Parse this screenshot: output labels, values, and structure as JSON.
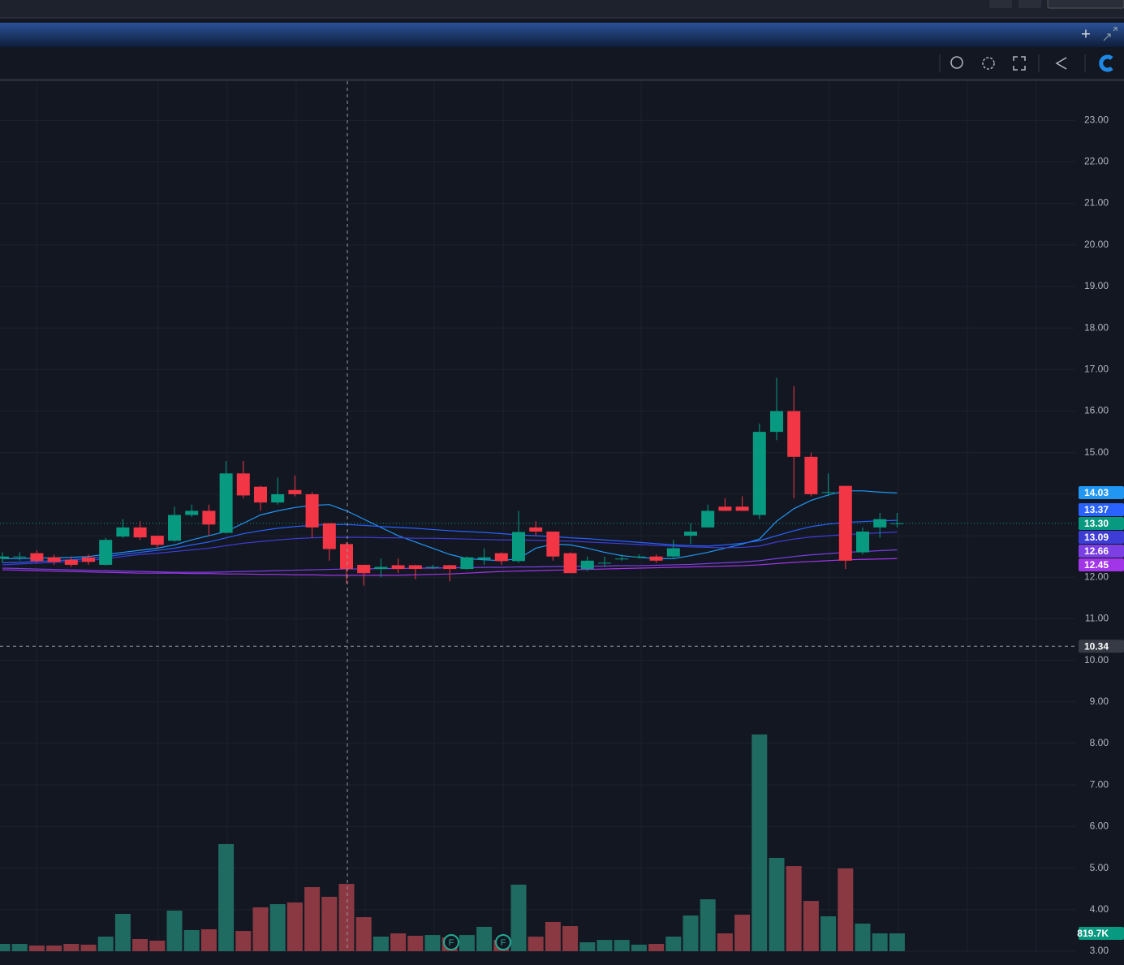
{
  "chart_data": {
    "type": "candlestick",
    "ylim": [
      3,
      24
    ],
    "yticks": [
      {
        "value": 3,
        "label": "3.00"
      },
      {
        "value": 4,
        "label": "4.00"
      },
      {
        "value": 5,
        "label": "5.00"
      },
      {
        "value": 6,
        "label": "6.00"
      },
      {
        "value": 7,
        "label": "7.00"
      },
      {
        "value": 8,
        "label": "8.00"
      },
      {
        "value": 9,
        "label": "9.00"
      },
      {
        "value": 10,
        "label": "10.00"
      },
      {
        "value": 11,
        "label": "11.00"
      },
      {
        "value": 12,
        "label": "12.00"
      },
      {
        "value": 13,
        "label": "13.00"
      },
      {
        "value": 14,
        "label": "14.00"
      },
      {
        "value": 15,
        "label": "15.00"
      },
      {
        "value": 16,
        "label": "16.00"
      },
      {
        "value": 17,
        "label": "17.00"
      },
      {
        "value": 18,
        "label": "18.00"
      },
      {
        "value": 19,
        "label": "19.00"
      },
      {
        "value": 20,
        "label": "20.00"
      },
      {
        "value": 21,
        "label": "21.00"
      },
      {
        "value": 22,
        "label": "22.00"
      },
      {
        "value": 23,
        "label": "23.00"
      }
    ],
    "grid": true,
    "up_color": "#089981",
    "down_color": "#f23645",
    "open": [
      12.45,
      12.5,
      12.58,
      12.48,
      12.42,
      12.48,
      12.3,
      12.98,
      13.2,
      13.0,
      12.88,
      13.5,
      13.6,
      13.07,
      14.5,
      14.18,
      13.8,
      14.1,
      14.0,
      13.3,
      12.8,
      12.3,
      12.2,
      12.29,
      12.29,
      12.25,
      12.29,
      12.2,
      12.43,
      12.58,
      12.39,
      13.2,
      13.1,
      12.58,
      12.2,
      12.35,
      12.45,
      12.5,
      12.5,
      12.5,
      13.0,
      13.2,
      13.7,
      13.7,
      13.5,
      15.5,
      16.0,
      14.9,
      14.05,
      14.2,
      12.6,
      13.2,
      13.3
    ],
    "high": [
      12.6,
      12.6,
      12.65,
      12.55,
      12.5,
      12.55,
      12.95,
      13.4,
      13.35,
      13.0,
      13.7,
      13.75,
      13.75,
      14.8,
      14.8,
      14.2,
      14.4,
      14.45,
      14.05,
      13.3,
      12.85,
      12.3,
      12.45,
      12.45,
      12.3,
      12.3,
      12.3,
      12.5,
      12.7,
      12.6,
      13.6,
      13.35,
      13.1,
      12.6,
      12.5,
      12.5,
      12.55,
      12.55,
      12.55,
      12.9,
      13.3,
      13.75,
      13.9,
      13.95,
      15.7,
      16.8,
      16.6,
      15.0,
      14.5,
      14.2,
      13.2,
      13.55,
      13.55
    ],
    "low": [
      12.35,
      12.4,
      12.35,
      12.3,
      12.25,
      12.3,
      12.28,
      12.95,
      12.9,
      12.7,
      12.85,
      13.45,
      13.0,
      13.05,
      13.9,
      13.6,
      13.75,
      13.95,
      12.95,
      12.4,
      11.85,
      11.8,
      12.0,
      12.1,
      11.95,
      12.2,
      11.9,
      12.18,
      12.3,
      12.3,
      12.35,
      13.0,
      12.4,
      12.1,
      12.15,
      12.25,
      12.4,
      12.45,
      12.35,
      12.45,
      12.8,
      13.2,
      13.6,
      13.6,
      13.4,
      15.3,
      13.9,
      13.95,
      13.95,
      12.2,
      12.55,
      12.95,
      13.2
    ],
    "close": [
      12.5,
      12.5,
      12.39,
      12.37,
      12.3,
      12.37,
      12.9,
      13.2,
      12.96,
      12.78,
      13.5,
      13.6,
      13.27,
      14.5,
      13.97,
      13.8,
      14.0,
      14.0,
      13.2,
      12.68,
      12.2,
      12.1,
      12.25,
      12.2,
      12.2,
      12.25,
      12.2,
      12.48,
      12.48,
      12.39,
      13.09,
      13.1,
      12.5,
      12.1,
      12.4,
      12.35,
      12.45,
      12.5,
      12.4,
      12.7,
      13.1,
      13.6,
      13.6,
      13.6,
      15.5,
      16.0,
      14.9,
      14.0,
      14.05,
      12.4,
      13.1,
      13.4,
      13.3
    ],
    "volume": {
      "values": [
        335,
        335,
        260,
        260,
        335,
        300,
        670,
        1715,
        560,
        485,
        1865,
        970,
        1010,
        4925,
        930,
        2015,
        2165,
        2240,
        2945,
        2500,
        3095,
        1565,
        670,
        820,
        710,
        745,
        635,
        745,
        1120,
        520,
        3060,
        670,
        1345,
        1155,
        410,
        520,
        520,
        300,
        335,
        670,
        1640,
        2385,
        820,
        1680,
        9960,
        4290,
        3915,
        2310,
        1605,
        3805,
        1270,
        820,
        819.7
      ],
      "value_label": "819.7K",
      "up_color": "#1f6b62",
      "down_color": "#8a3942",
      "label_color": "#089981"
    },
    "series": [
      {
        "color": "#2196f3",
        "value_label": "14.03",
        "values": [
          12.45,
          12.45,
          12.46,
          12.47,
          12.48,
          12.5,
          12.55,
          12.6,
          12.65,
          12.7,
          12.78,
          12.9,
          13.0,
          13.1,
          13.3,
          13.5,
          13.6,
          13.68,
          13.73,
          13.75,
          13.6,
          13.4,
          13.2,
          13.0,
          12.85,
          12.7,
          12.55,
          12.45,
          12.42,
          12.4,
          12.45,
          12.7,
          12.8,
          12.78,
          12.7,
          12.6,
          12.52,
          12.48,
          12.45,
          12.45,
          12.52,
          12.6,
          12.7,
          12.8,
          12.92,
          13.35,
          13.65,
          13.85,
          13.98,
          14.08,
          14.08,
          14.05,
          14.03
        ]
      },
      {
        "color": "#2962ff",
        "value_label": "13.37",
        "values": [
          12.35,
          12.36,
          12.38,
          12.4,
          12.42,
          12.45,
          12.5,
          12.55,
          12.6,
          12.65,
          12.7,
          12.78,
          12.85,
          12.95,
          13.05,
          13.12,
          13.18,
          13.22,
          13.25,
          13.27,
          13.27,
          13.25,
          13.22,
          13.2,
          13.18,
          13.15,
          13.12,
          13.1,
          13.08,
          13.05,
          13.02,
          13.0,
          12.98,
          12.95,
          12.93,
          12.9,
          12.87,
          12.84,
          12.81,
          12.78,
          12.76,
          12.75,
          12.78,
          12.82,
          12.88,
          13.0,
          13.12,
          13.22,
          13.28,
          13.32,
          13.34,
          13.36,
          13.37
        ]
      },
      {
        "color": "#3d3dd6",
        "value_label": "13.09",
        "values": [
          12.3,
          12.32,
          12.34,
          12.36,
          12.38,
          12.4,
          12.45,
          12.5,
          12.55,
          12.58,
          12.62,
          12.66,
          12.7,
          12.76,
          12.82,
          12.86,
          12.9,
          12.93,
          12.95,
          12.96,
          12.96,
          12.96,
          12.95,
          12.95,
          12.94,
          12.94,
          12.93,
          12.92,
          12.91,
          12.9,
          12.9,
          12.89,
          12.88,
          12.87,
          12.85,
          12.83,
          12.81,
          12.79,
          12.77,
          12.75,
          12.73,
          12.72,
          12.71,
          12.72,
          12.75,
          12.85,
          12.92,
          12.97,
          13.0,
          13.03,
          13.05,
          13.07,
          13.09
        ]
      },
      {
        "color": "#7b3fe4",
        "value_label": "12.66",
        "values": [
          12.22,
          12.21,
          12.2,
          12.19,
          12.18,
          12.17,
          12.16,
          12.15,
          12.14,
          12.13,
          12.12,
          12.12,
          12.12,
          12.13,
          12.14,
          12.15,
          12.16,
          12.17,
          12.18,
          12.19,
          12.2,
          12.2,
          12.21,
          12.21,
          12.22,
          12.22,
          12.23,
          12.23,
          12.24,
          12.24,
          12.25,
          12.25,
          12.26,
          12.26,
          12.27,
          12.27,
          12.28,
          12.28,
          12.29,
          12.3,
          12.31,
          12.33,
          12.35,
          12.37,
          12.4,
          12.45,
          12.5,
          12.54,
          12.57,
          12.6,
          12.62,
          12.64,
          12.66
        ]
      },
      {
        "color": "#a335e8",
        "value_label": "12.45",
        "values": [
          12.18,
          12.17,
          12.16,
          12.15,
          12.14,
          12.13,
          12.12,
          12.11,
          12.1,
          12.1,
          12.1,
          12.09,
          12.09,
          12.08,
          12.08,
          12.07,
          12.07,
          12.06,
          12.06,
          12.05,
          12.05,
          12.05,
          12.05,
          12.05,
          12.06,
          12.07,
          12.08,
          12.1,
          12.12,
          12.14,
          12.15,
          12.16,
          12.17,
          12.18,
          12.19,
          12.2,
          12.21,
          12.22,
          12.23,
          12.24,
          12.25,
          12.26,
          12.27,
          12.28,
          12.3,
          12.33,
          12.36,
          12.38,
          12.4,
          12.42,
          12.43,
          12.44,
          12.45
        ]
      }
    ],
    "last_price": {
      "value": 13.3,
      "label": "13.30",
      "color": "#089981"
    },
    "crosshair": {
      "value": 10.34,
      "label": "10.34"
    }
  },
  "events": [
    "F",
    "F"
  ]
}
